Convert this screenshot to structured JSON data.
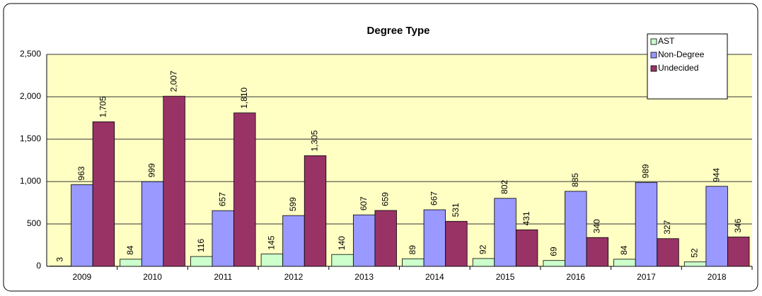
{
  "chart_data": {
    "type": "bar",
    "title": "Degree Type",
    "categories": [
      "2009",
      "2010",
      "2011",
      "2012",
      "2013",
      "2014",
      "2015",
      "2016",
      "2017",
      "2018"
    ],
    "series": [
      {
        "name": "AST",
        "color": "#ccffcc",
        "values": [
          3,
          84,
          116,
          145,
          140,
          89,
          92,
          69,
          84,
          52
        ]
      },
      {
        "name": "Non-Degree",
        "color": "#9999ff",
        "values": [
          963,
          999,
          657,
          599,
          607,
          667,
          802,
          885,
          989,
          944
        ]
      },
      {
        "name": "Undecided",
        "color": "#993366",
        "values": [
          1705,
          2007,
          1810,
          1305,
          659,
          531,
          431,
          340,
          327,
          346
        ],
        "value_labels": [
          "1,705",
          "2,007",
          "1,810",
          "1,305",
          "659",
          "531",
          "431",
          "340",
          "327",
          "346"
        ]
      }
    ],
    "ylim": [
      0,
      2500
    ],
    "yticks": [
      0,
      500,
      {
        "value": 1000,
        "label": "1,000"
      },
      {
        "value": 1500,
        "label": "1,500"
      },
      {
        "value": 2000,
        "label": "2,000"
      },
      {
        "value": 2500,
        "label": "2,500"
      }
    ],
    "grid": true,
    "legend": "top-right"
  }
}
